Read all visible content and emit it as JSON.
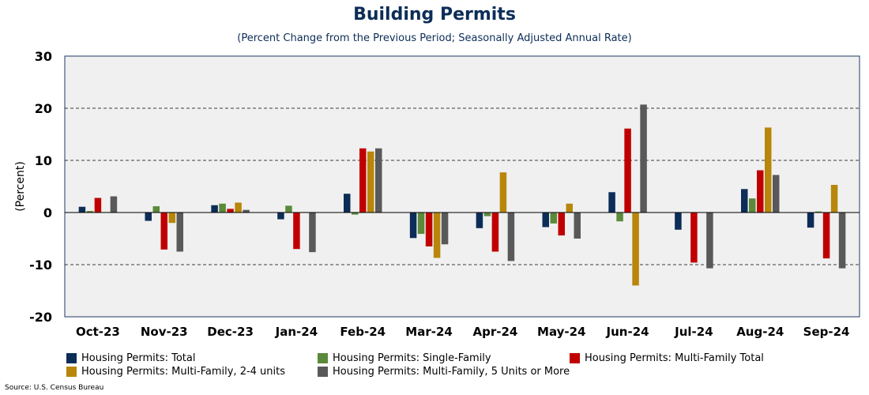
{
  "colors": {
    "total": "#0c2d57",
    "single_family": "#5a8a3a",
    "multi_family_total": "#c00000",
    "two_to_four": "#b8860b",
    "five_plus": "#595959",
    "plot_bg": "#f0f0f0",
    "plot_border": "#1f3864"
  },
  "source": "Source: U.S. Census Bureau",
  "chart_data": {
    "type": "bar",
    "title": "Building Permits",
    "subtitle": "(Percent Change from the Previous Period; Seasonally Adjusted Annual Rate)",
    "xlabel": "",
    "ylabel": "(Percent)",
    "ylim": [
      -20,
      30
    ],
    "yticks": [
      -20,
      -10,
      0,
      10,
      20,
      30
    ],
    "grid": "horizontal dashed at -10, 10, 20",
    "legend_position": "bottom",
    "categories": [
      "Oct-23",
      "Nov-23",
      "Dec-23",
      "Jan-24",
      "Feb-24",
      "Mar-24",
      "Apr-24",
      "May-24",
      "Jun-24",
      "Jul-24",
      "Aug-24",
      "Sep-24"
    ],
    "series": [
      {
        "name": "Housing Permits: Total",
        "color_key": "total",
        "values": [
          1.1,
          -1.6,
          1.4,
          -1.3,
          3.6,
          -4.9,
          -3.0,
          -2.8,
          3.9,
          -3.3,
          4.5,
          -2.9
        ]
      },
      {
        "name": "Housing Permits: Single-Family",
        "color_key": "single_family",
        "values": [
          0.3,
          1.2,
          1.7,
          1.3,
          -0.4,
          -4.1,
          -0.7,
          -2.1,
          -1.7,
          0.1,
          2.7,
          0.2
        ]
      },
      {
        "name": "Housing Permits: Multi-Family Total",
        "color_key": "multi_family_total",
        "values": [
          2.8,
          -7.1,
          0.7,
          -7.0,
          12.3,
          -6.5,
          -7.5,
          -4.4,
          16.1,
          -9.6,
          8.1,
          -8.8
        ]
      },
      {
        "name": "Housing Permits: Multi-Family, 2-4 units",
        "color_key": "two_to_four",
        "values": [
          0.1,
          -2.0,
          1.9,
          0.1,
          11.7,
          -8.7,
          7.7,
          1.7,
          -14.0,
          0.0,
          16.3,
          5.3
        ]
      },
      {
        "name": "Housing Permits: Multi-Family, 5 Units or More",
        "color_key": "five_plus",
        "values": [
          3.1,
          -7.5,
          0.5,
          -7.6,
          12.3,
          -6.1,
          -9.3,
          -5.0,
          20.7,
          -10.7,
          7.2,
          -10.7
        ]
      }
    ]
  }
}
